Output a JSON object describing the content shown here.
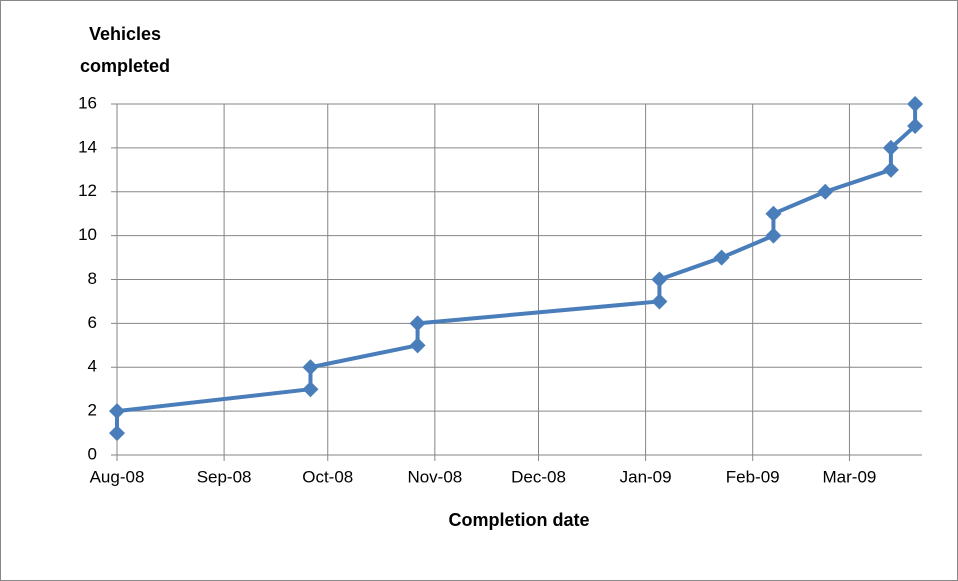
{
  "chart_data": {
    "type": "line",
    "x_label": "Completion date",
    "y_label": "Vehicles completed",
    "x": [
      "2008-08-01",
      "2008-08-01",
      "2008-09-26",
      "2008-09-26",
      "2008-10-27",
      "2008-10-27",
      "2009-01-05",
      "2009-01-05",
      "2009-01-23",
      "2009-02-07",
      "2009-02-07",
      "2009-02-22",
      "2009-03-13",
      "2009-03-13",
      "2009-03-20",
      "2009-03-20"
    ],
    "series": [
      {
        "name": "Vehicles completed",
        "color": "#4a7ebb",
        "values": [
          1,
          2,
          3,
          4,
          5,
          6,
          7,
          8,
          9,
          10,
          11,
          12,
          13,
          14,
          15,
          16
        ]
      }
    ],
    "xlim": [
      "2008-08-01",
      "2009-03-22"
    ],
    "xticks": [
      {
        "value": "2008-08-01",
        "label": "Aug-08"
      },
      {
        "value": "2008-09-01",
        "label": "Sep-08"
      },
      {
        "value": "2008-10-01",
        "label": "Oct-08"
      },
      {
        "value": "2008-11-01",
        "label": "Nov-08"
      },
      {
        "value": "2008-12-01",
        "label": "Dec-08"
      },
      {
        "value": "2009-01-01",
        "label": "Jan-09"
      },
      {
        "value": "2009-02-01",
        "label": "Feb-09"
      },
      {
        "value": "2009-03-01",
        "label": "Mar-09"
      }
    ],
    "ylim": [
      0,
      16
    ],
    "yticks": [
      0,
      2,
      4,
      6,
      8,
      10,
      12,
      14,
      16
    ],
    "grid": true
  }
}
